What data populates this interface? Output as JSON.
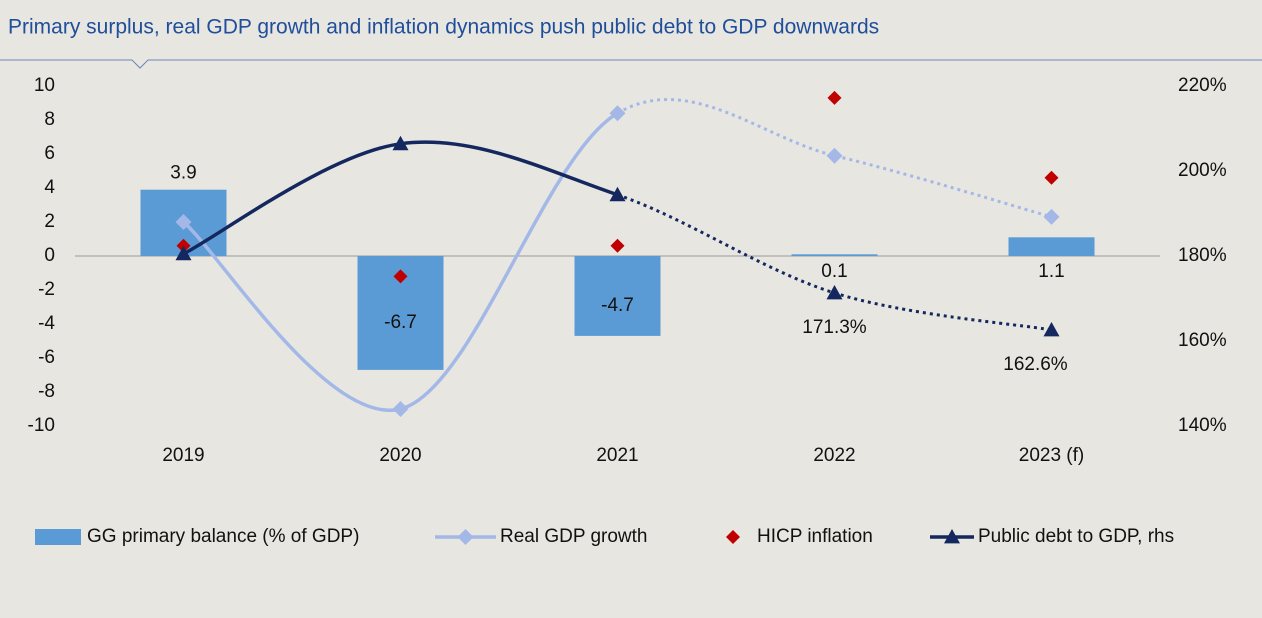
{
  "chart_data": {
    "type": "bar",
    "title": "Primary surplus, real GDP growth and inflation dynamics push public debt to GDP downwards",
    "categories": [
      "2019",
      "2020",
      "2021",
      "2022",
      "2023 (f)"
    ],
    "series": [
      {
        "name": "GG primary balance (% of GDP)",
        "type": "bar",
        "color": "#5b9bd5",
        "values": [
          3.9,
          -6.7,
          -4.7,
          0.1,
          1.1
        ]
      },
      {
        "name": "Real GDP growth",
        "type": "line",
        "color": "#a4b8e8",
        "values": [
          2.0,
          -9.0,
          8.4,
          5.9,
          2.3
        ]
      },
      {
        "name": "HICP inflation",
        "type": "scatter",
        "color": "#c00000",
        "values": [
          0.6,
          -1.2,
          0.6,
          9.3,
          4.6
        ]
      },
      {
        "name": "Public debt to GDP, rhs",
        "type": "line",
        "axis": "y2",
        "color": "#14285f",
        "values": [
          180.5,
          206.4,
          194.4,
          171.3,
          162.6
        ],
        "value_labels": [
          null,
          null,
          null,
          "171.3%",
          "162.6%"
        ]
      }
    ],
    "ylim": [
      -10,
      10
    ],
    "yticks": [
      -10,
      -8,
      -6,
      -4,
      -2,
      0,
      2,
      4,
      6,
      8,
      10
    ],
    "y2lim": [
      140,
      220
    ],
    "y2ticks": [
      {
        "value": 140,
        "label": "140%"
      },
      {
        "value": 160,
        "label": "160%"
      },
      {
        "value": 180,
        "label": "180%"
      },
      {
        "value": 200,
        "label": "200%"
      },
      {
        "value": 220,
        "label": "220%"
      }
    ],
    "legend": "bottom"
  }
}
